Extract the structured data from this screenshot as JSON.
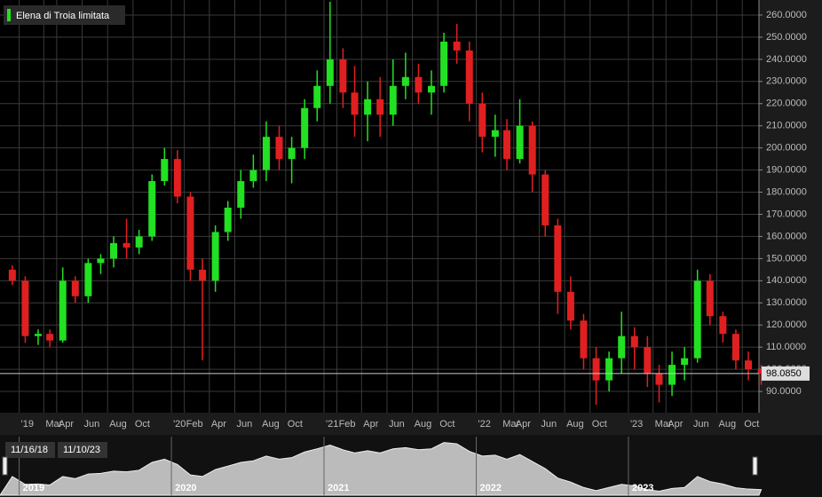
{
  "chart_data": {
    "type": "candlestick",
    "series": [
      {
        "name": "Elena di Troia limitata",
        "x": [
          "2018-12",
          "2019-01",
          "2019-02",
          "2019-03",
          "2019-04",
          "2019-05",
          "2019-06",
          "2019-07",
          "2019-08",
          "2019-09",
          "2019-10",
          "2019-11",
          "2019-12",
          "2020-01",
          "2020-02",
          "2020-03",
          "2020-04",
          "2020-05",
          "2020-06",
          "2020-07",
          "2020-08",
          "2020-09",
          "2020-10",
          "2020-11",
          "2020-12",
          "2021-01",
          "2021-02",
          "2021-03",
          "2021-04",
          "2021-05",
          "2021-06",
          "2021-07",
          "2021-08",
          "2021-09",
          "2021-10",
          "2021-11",
          "2021-12",
          "2022-01",
          "2022-02",
          "2022-03",
          "2022-04",
          "2022-05",
          "2022-06",
          "2022-07",
          "2022-08",
          "2022-09",
          "2022-10",
          "2022-11",
          "2022-12",
          "2023-01",
          "2023-02",
          "2023-03",
          "2023-04",
          "2023-05",
          "2023-06",
          "2023-07",
          "2023-08",
          "2023-09",
          "2023-10",
          "2023-11"
        ],
        "open": [
          145,
          140,
          115,
          116,
          113,
          140,
          133,
          148,
          150,
          157,
          155,
          160,
          185,
          195,
          178,
          145,
          140,
          162,
          173,
          185,
          190,
          205,
          195,
          200,
          218,
          228,
          240,
          225,
          215,
          222,
          215,
          228,
          232,
          225,
          228,
          248,
          244,
          220,
          205,
          208,
          195,
          210,
          188,
          165,
          135,
          122,
          105,
          95,
          105,
          115,
          110,
          98,
          93,
          102,
          105,
          140,
          124,
          116,
          104,
          100
        ],
        "high": [
          147,
          142,
          118,
          118,
          146,
          142,
          150,
          152,
          160,
          168,
          163,
          188,
          200,
          199,
          180,
          150,
          165,
          176,
          190,
          197,
          212,
          210,
          205,
          222,
          235,
          266,
          245,
          237,
          230,
          232,
          240,
          243,
          238,
          235,
          252,
          256,
          248,
          225,
          215,
          213,
          222,
          212,
          190,
          168,
          142,
          125,
          110,
          108,
          126,
          119,
          115,
          102,
          108,
          110,
          145,
          143,
          126,
          118,
          108,
          102
        ],
        "low": [
          138,
          112,
          111,
          110,
          112,
          130,
          130,
          143,
          146,
          150,
          152,
          158,
          183,
          175,
          140,
          104,
          135,
          158,
          168,
          182,
          185,
          190,
          184,
          195,
          212,
          220,
          218,
          205,
          203,
          205,
          210,
          222,
          220,
          215,
          225,
          238,
          212,
          198,
          196,
          190,
          193,
          180,
          160,
          125,
          118,
          100,
          84,
          90,
          98,
          100,
          92,
          85,
          88,
          95,
          103,
          120,
          112,
          100,
          95,
          93
        ],
        "close": [
          140,
          115,
          116,
          113,
          140,
          133,
          148,
          150,
          157,
          155,
          160,
          185,
          195,
          178,
          145,
          140,
          162,
          173,
          185,
          190,
          205,
          195,
          200,
          218,
          228,
          240,
          225,
          215,
          222,
          215,
          228,
          232,
          225,
          228,
          248,
          244,
          220,
          205,
          208,
          195,
          210,
          188,
          165,
          135,
          122,
          105,
          95,
          105,
          115,
          110,
          98,
          93,
          102,
          105,
          140,
          124,
          116,
          104,
          100,
          98.085
        ]
      }
    ],
    "up_color": "#22e022",
    "down_color": "#e02020",
    "xlim": [
      "2018-11-16",
      "2023-11-10"
    ],
    "xticks": [
      {
        "value": "2019-01",
        "label": "'19"
      },
      {
        "value": "2019-03",
        "label": "Mar"
      },
      {
        "value": "2019-04",
        "label": "Apr"
      },
      {
        "value": "2019-06",
        "label": "Jun"
      },
      {
        "value": "2019-08",
        "label": "Aug"
      },
      {
        "value": "2019-10",
        "label": "Oct"
      },
      {
        "value": "2020-01",
        "label": "'20"
      },
      {
        "value": "2020-02",
        "label": "Feb"
      },
      {
        "value": "2020-04",
        "label": "Apr"
      },
      {
        "value": "2020-06",
        "label": "Jun"
      },
      {
        "value": "2020-08",
        "label": "Aug"
      },
      {
        "value": "2020-10",
        "label": "Oct"
      },
      {
        "value": "2021-01",
        "label": "'21"
      },
      {
        "value": "2021-02",
        "label": "Feb"
      },
      {
        "value": "2021-04",
        "label": "Apr"
      },
      {
        "value": "2021-06",
        "label": "Jun"
      },
      {
        "value": "2021-08",
        "label": "Aug"
      },
      {
        "value": "2021-10",
        "label": "Oct"
      },
      {
        "value": "2022-01",
        "label": "'22"
      },
      {
        "value": "2022-03",
        "label": "Mar"
      },
      {
        "value": "2022-04",
        "label": "Apr"
      },
      {
        "value": "2022-06",
        "label": "Jun"
      },
      {
        "value": "2022-08",
        "label": "Aug"
      },
      {
        "value": "2022-10",
        "label": "Oct"
      },
      {
        "value": "2023-01",
        "label": "'23"
      },
      {
        "value": "2023-03",
        "label": "Mar"
      },
      {
        "value": "2023-04",
        "label": "Apr"
      },
      {
        "value": "2023-06",
        "label": "Jun"
      },
      {
        "value": "2023-08",
        "label": "Aug"
      },
      {
        "value": "2023-10",
        "label": "Oct"
      }
    ],
    "ylim": [
      80.4,
      266.8
    ],
    "yticks": [
      {
        "value": 90,
        "label": "90.0000"
      },
      {
        "value": 100,
        "label": "100.0000"
      },
      {
        "value": 110,
        "label": "110.0000"
      },
      {
        "value": 120,
        "label": "120.0000"
      },
      {
        "value": 130,
        "label": "130.0000"
      },
      {
        "value": 140,
        "label": "140.0000"
      },
      {
        "value": 150,
        "label": "150.0000"
      },
      {
        "value": 160,
        "label": "160.0000"
      },
      {
        "value": 170,
        "label": "170.0000"
      },
      {
        "value": 180,
        "label": "180.0000"
      },
      {
        "value": 190,
        "label": "190.0000"
      },
      {
        "value": 200,
        "label": "200.0000"
      },
      {
        "value": 210,
        "label": "210.0000"
      },
      {
        "value": 220,
        "label": "220.0000"
      },
      {
        "value": 230,
        "label": "230.0000"
      },
      {
        "value": 240,
        "label": "240.0000"
      },
      {
        "value": 250,
        "label": "250.0000"
      },
      {
        "value": 260,
        "label": "260.0000"
      }
    ],
    "grid": true,
    "last_price": {
      "value": 98.085,
      "label": "98.0850"
    },
    "navigator": {
      "start_label": "11/16/18",
      "end_label": "11/10/23",
      "years": [
        "2019",
        "2020",
        "2021",
        "2022",
        "2023"
      ]
    }
  }
}
